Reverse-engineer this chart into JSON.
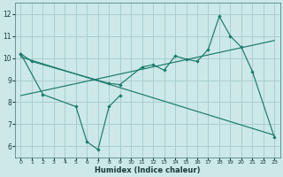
{
  "title": "",
  "xlabel": "Humidex (Indice chaleur)",
  "bg_color": "#cce8e8",
  "grid_color": "#aacece",
  "line_color": "#1a7a6a",
  "series1_x": [
    0,
    1,
    8,
    9,
    11,
    12,
    13,
    14,
    15,
    16,
    17,
    18,
    19,
    20,
    21,
    23
  ],
  "series1_y": [
    10.2,
    9.85,
    8.85,
    8.8,
    9.6,
    9.7,
    9.45,
    10.1,
    9.95,
    9.85,
    10.4,
    11.9,
    11.0,
    10.5,
    9.4,
    6.4
  ],
  "series2_x": [
    0,
    2,
    5,
    6,
    7,
    8,
    9
  ],
  "series2_y": [
    10.2,
    8.35,
    7.8,
    6.2,
    5.85,
    7.8,
    8.3
  ],
  "trend1_x": [
    0,
    23
  ],
  "trend1_y": [
    8.3,
    10.8
  ],
  "trend2_x": [
    0,
    23
  ],
  "trend2_y": [
    10.05,
    6.5
  ],
  "xlim": [
    -0.5,
    23.5
  ],
  "ylim": [
    5.5,
    12.5
  ],
  "yticks": [
    6,
    7,
    8,
    9,
    10,
    11,
    12
  ],
  "xticks": [
    0,
    1,
    2,
    3,
    4,
    5,
    6,
    7,
    8,
    9,
    10,
    11,
    12,
    13,
    14,
    15,
    16,
    17,
    18,
    19,
    20,
    21,
    22,
    23
  ]
}
